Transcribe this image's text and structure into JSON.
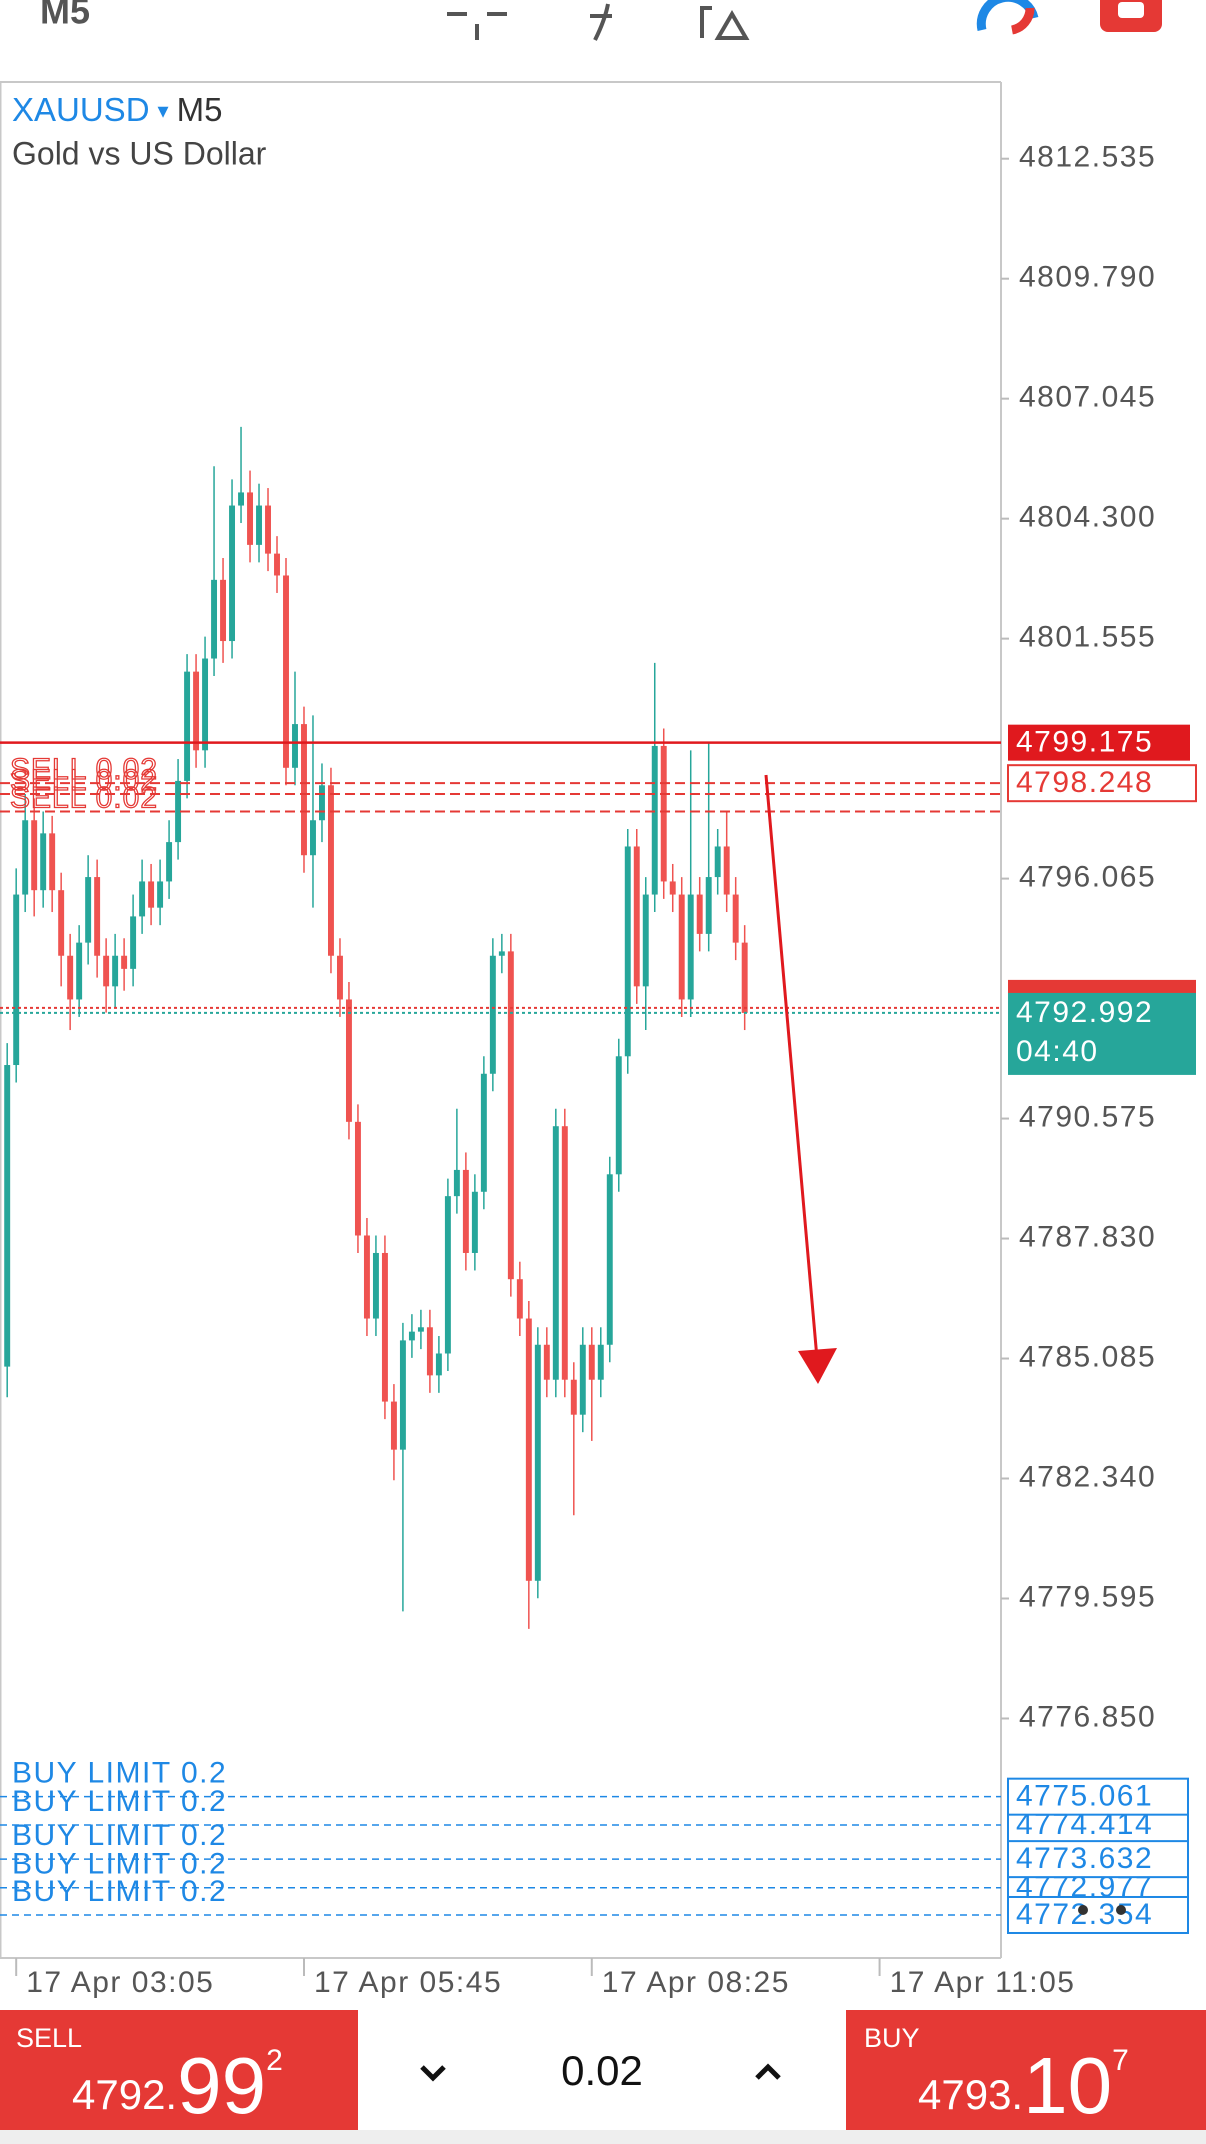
{
  "top_bar": {
    "timeframe": "M5"
  },
  "chart_data": {
    "type": "candlestick",
    "symbol": "XAUUSD",
    "symbol_arrow": "▾",
    "timeframe": "M5",
    "subtitle": "Gold vs US Dollar",
    "up_color": "#26a69a",
    "down_color": "#ef5350",
    "ohlc": [
      [
        4784.9,
        4792.3,
        4784.2,
        4791.8
      ],
      [
        4791.8,
        4796.3,
        4791.4,
        4795.7
      ],
      [
        4795.7,
        4798.0,
        4795.3,
        4797.4
      ],
      [
        4797.4,
        4797.9,
        4795.2,
        4795.8
      ],
      [
        4795.8,
        4797.6,
        4795.4,
        4797.1
      ],
      [
        4797.1,
        4797.5,
        4795.3,
        4795.8
      ],
      [
        4795.8,
        4796.2,
        4793.6,
        4794.3
      ],
      [
        4794.3,
        4794.8,
        4792.6,
        4793.3
      ],
      [
        4793.3,
        4795.0,
        4792.9,
        4794.6
      ],
      [
        4794.6,
        4796.6,
        4794.1,
        4796.1
      ],
      [
        4796.1,
        4796.5,
        4793.8,
        4794.3
      ],
      [
        4794.3,
        4794.7,
        4793.0,
        4793.6
      ],
      [
        4793.6,
        4794.8,
        4793.1,
        4794.3
      ],
      [
        4794.3,
        4794.7,
        4793.5,
        4794.0
      ],
      [
        4794.0,
        4795.7,
        4793.6,
        4795.2
      ],
      [
        4795.2,
        4796.5,
        4794.8,
        4796.0
      ],
      [
        4796.0,
        4796.4,
        4795.0,
        4795.4
      ],
      [
        4795.4,
        4796.5,
        4795.0,
        4796.0
      ],
      [
        4796.0,
        4797.4,
        4795.6,
        4796.9
      ],
      [
        4796.9,
        4798.8,
        4796.5,
        4798.3
      ],
      [
        4798.3,
        4801.2,
        4797.9,
        4800.8
      ],
      [
        4800.8,
        4801.2,
        4798.6,
        4799.0
      ],
      [
        4799.0,
        4801.6,
        4798.6,
        4801.1
      ],
      [
        4801.1,
        4805.5,
        4800.7,
        4802.9
      ],
      [
        4802.9,
        4803.4,
        4801.0,
        4801.5
      ],
      [
        4801.5,
        4805.2,
        4801.1,
        4804.6
      ],
      [
        4804.6,
        4806.4,
        4804.2,
        4804.9
      ],
      [
        4804.9,
        4805.4,
        4803.3,
        4803.7
      ],
      [
        4803.7,
        4805.1,
        4803.3,
        4804.6
      ],
      [
        4804.6,
        4805.0,
        4803.1,
        4803.5
      ],
      [
        4803.5,
        4803.9,
        4802.6,
        4803.0
      ],
      [
        4803.0,
        4803.4,
        4798.2,
        4798.6
      ],
      [
        4798.6,
        4800.8,
        4798.2,
        4799.6
      ],
      [
        4799.6,
        4800.0,
        4796.2,
        4796.6
      ],
      [
        4796.6,
        4799.8,
        4795.4,
        4797.4
      ],
      [
        4797.4,
        4798.7,
        4796.9,
        4798.2
      ],
      [
        4798.2,
        4798.6,
        4793.9,
        4794.3
      ],
      [
        4794.3,
        4794.7,
        4792.9,
        4793.3
      ],
      [
        4793.3,
        4793.7,
        4790.1,
        4790.5
      ],
      [
        4790.5,
        4790.9,
        4787.5,
        4787.9
      ],
      [
        4787.9,
        4788.3,
        4785.6,
        4786.0
      ],
      [
        4786.0,
        4787.9,
        4785.6,
        4787.5
      ],
      [
        4787.5,
        4787.9,
        4783.7,
        4784.1
      ],
      [
        4784.1,
        4784.5,
        4782.3,
        4783.0
      ],
      [
        4783.0,
        4785.9,
        4779.3,
        4785.5
      ],
      [
        4785.5,
        4786.1,
        4785.1,
        4785.7
      ],
      [
        4785.7,
        4786.2,
        4785.3,
        4785.8
      ],
      [
        4785.8,
        4786.2,
        4784.3,
        4784.7
      ],
      [
        4784.7,
        4785.6,
        4784.3,
        4785.2
      ],
      [
        4785.2,
        4789.2,
        4784.8,
        4788.8
      ],
      [
        4788.8,
        4790.8,
        4788.4,
        4789.4
      ],
      [
        4789.4,
        4789.8,
        4787.1,
        4787.5
      ],
      [
        4787.5,
        4789.3,
        4787.1,
        4788.9
      ],
      [
        4788.9,
        4792.0,
        4788.5,
        4791.6
      ],
      [
        4791.6,
        4794.7,
        4791.2,
        4794.3
      ],
      [
        4794.3,
        4794.8,
        4793.9,
        4794.4
      ],
      [
        4794.4,
        4794.8,
        4786.5,
        4786.9
      ],
      [
        4786.9,
        4787.3,
        4785.6,
        4786.0
      ],
      [
        4786.0,
        4786.4,
        4778.9,
        4780.0
      ],
      [
        4780.0,
        4785.8,
        4779.6,
        4785.4
      ],
      [
        4785.4,
        4785.8,
        4784.2,
        4784.6
      ],
      [
        4784.6,
        4790.8,
        4784.2,
        4790.4
      ],
      [
        4790.4,
        4790.8,
        4784.2,
        4784.6
      ],
      [
        4784.6,
        4785.0,
        4781.5,
        4783.8
      ],
      [
        4783.8,
        4785.8,
        4783.4,
        4785.4
      ],
      [
        4785.4,
        4785.8,
        4783.2,
        4784.6
      ],
      [
        4784.6,
        4785.8,
        4784.2,
        4785.4
      ],
      [
        4785.4,
        4789.7,
        4785.0,
        4789.3
      ],
      [
        4789.3,
        4792.4,
        4788.9,
        4792.0
      ],
      [
        4792.0,
        4797.2,
        4791.6,
        4796.8
      ],
      [
        4796.8,
        4797.2,
        4793.2,
        4793.6
      ],
      [
        4793.6,
        4796.1,
        4792.6,
        4795.7
      ],
      [
        4795.7,
        4801.0,
        4795.3,
        4799.1
      ],
      [
        4799.1,
        4799.5,
        4795.6,
        4796.0
      ],
      [
        4796.0,
        4796.4,
        4795.3,
        4795.7
      ],
      [
        4795.7,
        4796.1,
        4792.9,
        4793.3
      ],
      [
        4793.3,
        4799.0,
        4792.9,
        4795.7
      ],
      [
        4795.7,
        4796.1,
        4794.4,
        4794.8
      ],
      [
        4794.8,
        4799.2,
        4794.4,
        4796.1
      ],
      [
        4796.1,
        4797.2,
        4795.7,
        4796.8
      ],
      [
        4796.8,
        4797.6,
        4795.3,
        4795.7
      ],
      [
        4795.7,
        4796.1,
        4794.2,
        4794.6
      ],
      [
        4794.6,
        4795.0,
        4792.6,
        4792.992
      ]
    ],
    "xlim": [
      -0.8,
      110.5
    ],
    "xticks": [
      {
        "value": 1,
        "label": "17 Apr 03:05"
      },
      {
        "value": 33,
        "label": "17 Apr 05:45"
      },
      {
        "value": 65,
        "label": "17 Apr 08:25"
      },
      {
        "value": 97,
        "label": "17 Apr 11:05"
      }
    ],
    "ylim": [
      4771.37,
      4814.29
    ],
    "yticks": [
      4812.535,
      {
        "value": 4809.79,
        "label": "4809.790"
      },
      4807.045,
      {
        "value": 4804.3,
        "label": "4804.300"
      },
      4801.555,
      4796.065,
      4790.575,
      {
        "value": 4787.83,
        "label": "4787.830"
      },
      4785.085,
      {
        "value": 4782.34,
        "label": "4782.340"
      },
      4779.595,
      {
        "value": 4776.85,
        "label": "4776.850"
      }
    ],
    "level_line": {
      "value": 4799.175,
      "color": "#e0191e"
    },
    "sell_color": "#e53935",
    "sell_orders": [
      {
        "name": "SELL 0.02",
        "value": 4798.248
      },
      {
        "name": "SELL 0.02",
        "value": 4798.0
      },
      {
        "name": "SELL 0.02",
        "value": 4797.6
      }
    ],
    "bid": {
      "value": 4792.992,
      "countdown": "04:40",
      "color": "#26a69a"
    },
    "ask": {
      "value": 4793.107,
      "color": "#e53935"
    },
    "buy_color": "#1e88e5",
    "buy_limits": [
      {
        "name": "BUY LIMIT 0.2",
        "value": 4775.061
      },
      {
        "name": "BUY LIMIT 0.2",
        "value": 4774.414
      },
      {
        "name": "BUY LIMIT 0.2",
        "value": 4773.632
      },
      {
        "name": "BUY LIMIT 0.2",
        "value": 4772.977
      },
      {
        "name": "BUY LIMIT 0.2",
        "value": 4772.354
      }
    ]
  },
  "trade_bar": {
    "sell": {
      "label": "SELL",
      "price_head": "4792.",
      "price_big": "99",
      "price_sup": "2"
    },
    "volume": "0.02",
    "buy": {
      "label": "BUY",
      "price_head": "4793.",
      "price_big": "10",
      "price_sup": "7"
    }
  }
}
